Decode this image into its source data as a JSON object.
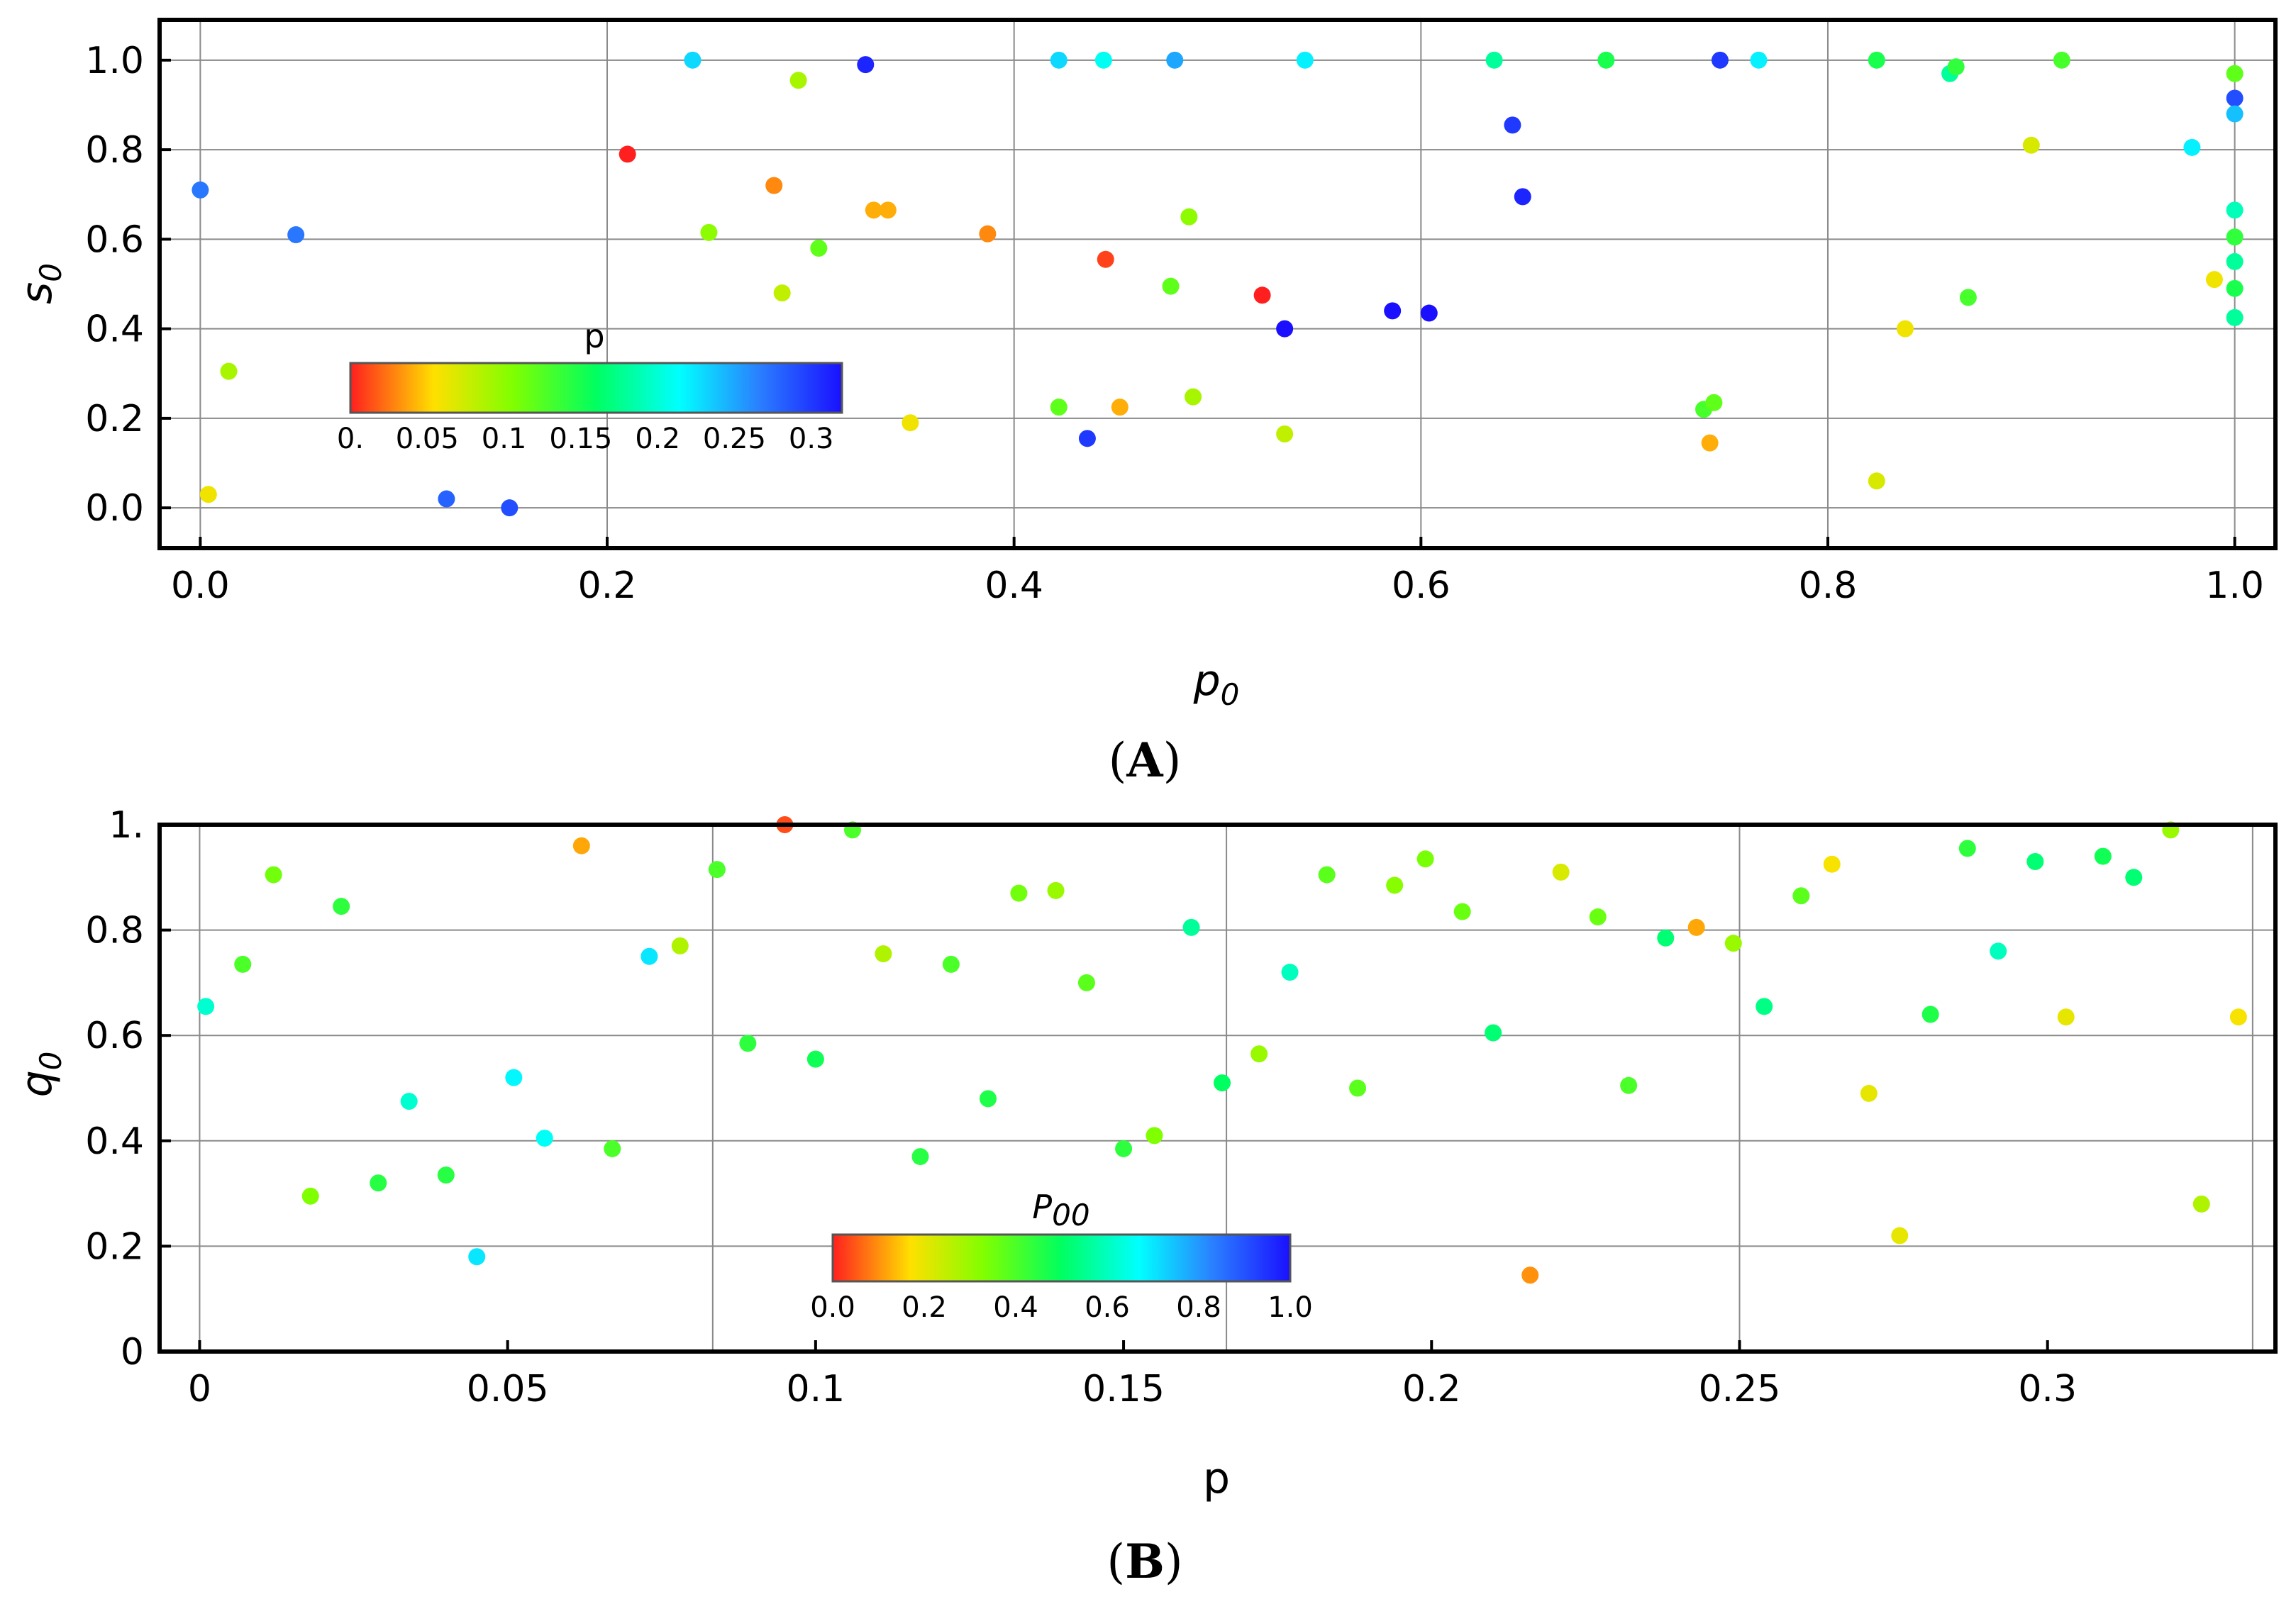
{
  "chart_data": [
    {
      "panel": "A",
      "type": "scatter",
      "xlabel": "p",
      "xlabel_sub": "0",
      "ylabel": "s",
      "ylabel_sub": "0",
      "xlim": [
        -0.02,
        1.02
      ],
      "ylim": [
        -0.09,
        1.09
      ],
      "xticks": [
        0.0,
        0.2,
        0.4,
        0.6,
        0.8,
        1.0
      ],
      "xtick_labels": [
        "0.0",
        "0.2",
        "0.4",
        "0.6",
        "0.8",
        "1.0"
      ],
      "yticks": [
        0.0,
        0.2,
        0.4,
        0.6,
        0.8,
        1.0
      ],
      "ytick_labels": [
        "0.0",
        "0.2",
        "0.4",
        "0.6",
        "0.8",
        "1.0"
      ],
      "grid": true,
      "colorbar": {
        "title": "p",
        "range": [
          0,
          0.32
        ],
        "tick_values": [
          0,
          0.05,
          0.1,
          0.15,
          0.2,
          0.25,
          0.3
        ],
        "tick_labels": [
          "0.",
          "0.05",
          "0.1",
          "0.15",
          "0.2",
          "0.25",
          "0.3"
        ]
      },
      "points": [
        {
          "x": 0.0,
          "y": 0.71,
          "c": 0.27
        },
        {
          "x": 0.004,
          "y": 0.03,
          "c": 0.06
        },
        {
          "x": 0.014,
          "y": 0.305,
          "c": 0.09
        },
        {
          "x": 0.047,
          "y": 0.61,
          "c": 0.27
        },
        {
          "x": 0.121,
          "y": 0.02,
          "c": 0.28
        },
        {
          "x": 0.152,
          "y": 0.0,
          "c": 0.29
        },
        {
          "x": 0.21,
          "y": 0.79,
          "c": 0.0
        },
        {
          "x": 0.242,
          "y": 1.0,
          "c": 0.23
        },
        {
          "x": 0.25,
          "y": 0.615,
          "c": 0.1
        },
        {
          "x": 0.282,
          "y": 0.72,
          "c": 0.03
        },
        {
          "x": 0.286,
          "y": 0.48,
          "c": 0.08
        },
        {
          "x": 0.294,
          "y": 0.955,
          "c": 0.09
        },
        {
          "x": 0.304,
          "y": 0.58,
          "c": 0.12
        },
        {
          "x": 0.327,
          "y": 0.99,
          "c": 0.31
        },
        {
          "x": 0.331,
          "y": 0.665,
          "c": 0.04
        },
        {
          "x": 0.338,
          "y": 0.665,
          "c": 0.04
        },
        {
          "x": 0.349,
          "y": 0.19,
          "c": 0.06
        },
        {
          "x": 0.387,
          "y": 0.612,
          "c": 0.03
        },
        {
          "x": 0.422,
          "y": 1.0,
          "c": 0.23
        },
        {
          "x": 0.422,
          "y": 0.225,
          "c": 0.12
        },
        {
          "x": 0.436,
          "y": 0.155,
          "c": 0.3
        },
        {
          "x": 0.444,
          "y": 1.0,
          "c": 0.21
        },
        {
          "x": 0.445,
          "y": 0.555,
          "c": 0.01
        },
        {
          "x": 0.452,
          "y": 0.225,
          "c": 0.04
        },
        {
          "x": 0.477,
          "y": 0.495,
          "c": 0.12
        },
        {
          "x": 0.479,
          "y": 1.0,
          "c": 0.25
        },
        {
          "x": 0.486,
          "y": 0.65,
          "c": 0.1
        },
        {
          "x": 0.488,
          "y": 0.248,
          "c": 0.09
        },
        {
          "x": 0.522,
          "y": 0.475,
          "c": 0.0
        },
        {
          "x": 0.533,
          "y": 0.4,
          "c": 0.32
        },
        {
          "x": 0.533,
          "y": 0.165,
          "c": 0.08
        },
        {
          "x": 0.543,
          "y": 1.0,
          "c": 0.22
        },
        {
          "x": 0.586,
          "y": 0.44,
          "c": 0.32
        },
        {
          "x": 0.604,
          "y": 0.435,
          "c": 0.32
        },
        {
          "x": 0.636,
          "y": 1.0,
          "c": 0.18
        },
        {
          "x": 0.645,
          "y": 0.855,
          "c": 0.3
        },
        {
          "x": 0.65,
          "y": 0.695,
          "c": 0.31
        },
        {
          "x": 0.691,
          "y": 1.0,
          "c": 0.15
        },
        {
          "x": 0.739,
          "y": 0.22,
          "c": 0.13
        },
        {
          "x": 0.742,
          "y": 0.145,
          "c": 0.04
        },
        {
          "x": 0.744,
          "y": 0.235,
          "c": 0.12
        },
        {
          "x": 0.747,
          "y": 1.0,
          "c": 0.3
        },
        {
          "x": 0.766,
          "y": 1.0,
          "c": 0.22
        },
        {
          "x": 0.824,
          "y": 1.0,
          "c": 0.15
        },
        {
          "x": 0.824,
          "y": 0.06,
          "c": 0.07
        },
        {
          "x": 0.838,
          "y": 0.4,
          "c": 0.06
        },
        {
          "x": 0.86,
          "y": 0.97,
          "c": 0.18
        },
        {
          "x": 0.863,
          "y": 0.985,
          "c": 0.14
        },
        {
          "x": 0.869,
          "y": 0.47,
          "c": 0.13
        },
        {
          "x": 0.9,
          "y": 0.81,
          "c": 0.07
        },
        {
          "x": 0.915,
          "y": 1.0,
          "c": 0.13
        },
        {
          "x": 0.979,
          "y": 0.805,
          "c": 0.22
        },
        {
          "x": 0.99,
          "y": 0.51,
          "c": 0.06
        },
        {
          "x": 1.0,
          "y": 0.97,
          "c": 0.12
        },
        {
          "x": 1.0,
          "y": 0.915,
          "c": 0.29
        },
        {
          "x": 1.0,
          "y": 0.88,
          "c": 0.24
        },
        {
          "x": 1.0,
          "y": 0.665,
          "c": 0.19
        },
        {
          "x": 1.0,
          "y": 0.605,
          "c": 0.14
        },
        {
          "x": 1.0,
          "y": 0.55,
          "c": 0.18
        },
        {
          "x": 1.0,
          "y": 0.49,
          "c": 0.15
        },
        {
          "x": 1.0,
          "y": 0.425,
          "c": 0.18
        }
      ]
    },
    {
      "panel": "B",
      "type": "scatter",
      "xlabel": "p",
      "xlabel_sub": "",
      "ylabel": "q",
      "ylabel_sub": "0",
      "xlim": [
        -0.0065,
        0.337
      ],
      "ylim": [
        0.0,
        1.0
      ],
      "xticks": [
        0,
        0.05,
        0.1,
        0.15,
        0.2,
        0.25,
        0.3
      ],
      "xtick_labels": [
        "0",
        "0.05",
        "0.1",
        "0.15",
        "0.2",
        "0.25",
        "0.3"
      ],
      "yticks": [
        0,
        0.2,
        0.4,
        0.6,
        0.8,
        1.0
      ],
      "ytick_labels": [
        "0",
        "0.2",
        "0.4",
        "0.6",
        "0.8",
        "1."
      ],
      "grid_x": [
        0,
        0.0833,
        0.1667,
        0.25,
        0.3333
      ],
      "grid": true,
      "colorbar": {
        "title": "P",
        "title_sub": "00",
        "range": [
          0,
          1
        ],
        "tick_values": [
          0,
          0.2,
          0.4,
          0.6,
          0.8,
          1.0
        ],
        "tick_labels": [
          "0.0",
          "0.2",
          "0.4",
          "0.6",
          "0.8",
          "1.0"
        ]
      },
      "points": [
        {
          "x": 0.001,
          "y": 0.655,
          "c": 0.62
        },
        {
          "x": 0.007,
          "y": 0.735,
          "c": 0.4
        },
        {
          "x": 0.012,
          "y": 0.905,
          "c": 0.35
        },
        {
          "x": 0.018,
          "y": 0.295,
          "c": 0.33
        },
        {
          "x": 0.023,
          "y": 0.845,
          "c": 0.44
        },
        {
          "x": 0.029,
          "y": 0.32,
          "c": 0.45
        },
        {
          "x": 0.034,
          "y": 0.475,
          "c": 0.62
        },
        {
          "x": 0.04,
          "y": 0.335,
          "c": 0.45
        },
        {
          "x": 0.045,
          "y": 0.18,
          "c": 0.7
        },
        {
          "x": 0.051,
          "y": 0.52,
          "c": 0.68
        },
        {
          "x": 0.056,
          "y": 0.405,
          "c": 0.66
        },
        {
          "x": 0.062,
          "y": 0.96,
          "c": 0.12
        },
        {
          "x": 0.067,
          "y": 0.385,
          "c": 0.4
        },
        {
          "x": 0.073,
          "y": 0.75,
          "c": 0.7
        },
        {
          "x": 0.078,
          "y": 0.77,
          "c": 0.27
        },
        {
          "x": 0.084,
          "y": 0.915,
          "c": 0.4
        },
        {
          "x": 0.089,
          "y": 0.585,
          "c": 0.44
        },
        {
          "x": 0.095,
          "y": 1.0,
          "c": 0.04
        },
        {
          "x": 0.1,
          "y": 0.555,
          "c": 0.48
        },
        {
          "x": 0.106,
          "y": 0.99,
          "c": 0.4
        },
        {
          "x": 0.111,
          "y": 0.755,
          "c": 0.27
        },
        {
          "x": 0.117,
          "y": 0.37,
          "c": 0.45
        },
        {
          "x": 0.122,
          "y": 0.735,
          "c": 0.4
        },
        {
          "x": 0.128,
          "y": 0.48,
          "c": 0.46
        },
        {
          "x": 0.133,
          "y": 0.87,
          "c": 0.35
        },
        {
          "x": 0.139,
          "y": 0.875,
          "c": 0.3
        },
        {
          "x": 0.144,
          "y": 0.7,
          "c": 0.38
        },
        {
          "x": 0.15,
          "y": 0.385,
          "c": 0.44
        },
        {
          "x": 0.155,
          "y": 0.41,
          "c": 0.33
        },
        {
          "x": 0.161,
          "y": 0.805,
          "c": 0.56
        },
        {
          "x": 0.166,
          "y": 0.51,
          "c": 0.5
        },
        {
          "x": 0.172,
          "y": 0.565,
          "c": 0.3
        },
        {
          "x": 0.177,
          "y": 0.72,
          "c": 0.6
        },
        {
          "x": 0.183,
          "y": 0.905,
          "c": 0.38
        },
        {
          "x": 0.188,
          "y": 0.5,
          "c": 0.38
        },
        {
          "x": 0.194,
          "y": 0.885,
          "c": 0.32
        },
        {
          "x": 0.199,
          "y": 0.935,
          "c": 0.34
        },
        {
          "x": 0.205,
          "y": 0.835,
          "c": 0.36
        },
        {
          "x": 0.21,
          "y": 0.605,
          "c": 0.52
        },
        {
          "x": 0.216,
          "y": 0.145,
          "c": 0.1
        },
        {
          "x": 0.221,
          "y": 0.91,
          "c": 0.22
        },
        {
          "x": 0.227,
          "y": 0.825,
          "c": 0.36
        },
        {
          "x": 0.232,
          "y": 0.505,
          "c": 0.4
        },
        {
          "x": 0.238,
          "y": 0.785,
          "c": 0.52
        },
        {
          "x": 0.243,
          "y": 0.805,
          "c": 0.12
        },
        {
          "x": 0.249,
          "y": 0.775,
          "c": 0.3
        },
        {
          "x": 0.254,
          "y": 0.655,
          "c": 0.54
        },
        {
          "x": 0.26,
          "y": 0.865,
          "c": 0.38
        },
        {
          "x": 0.265,
          "y": 0.925,
          "c": 0.18
        },
        {
          "x": 0.271,
          "y": 0.49,
          "c": 0.2
        },
        {
          "x": 0.276,
          "y": 0.22,
          "c": 0.2
        },
        {
          "x": 0.281,
          "y": 0.64,
          "c": 0.46
        },
        {
          "x": 0.287,
          "y": 0.955,
          "c": 0.44
        },
        {
          "x": 0.292,
          "y": 0.76,
          "c": 0.6
        },
        {
          "x": 0.298,
          "y": 0.93,
          "c": 0.52
        },
        {
          "x": 0.303,
          "y": 0.635,
          "c": 0.2
        },
        {
          "x": 0.309,
          "y": 0.94,
          "c": 0.48
        },
        {
          "x": 0.314,
          "y": 0.9,
          "c": 0.52
        },
        {
          "x": 0.32,
          "y": 0.99,
          "c": 0.3
        },
        {
          "x": 0.325,
          "y": 0.28,
          "c": 0.27
        },
        {
          "x": 0.331,
          "y": 0.635,
          "c": 0.18
        }
      ]
    }
  ],
  "panel_labels": [
    "A",
    "B"
  ]
}
